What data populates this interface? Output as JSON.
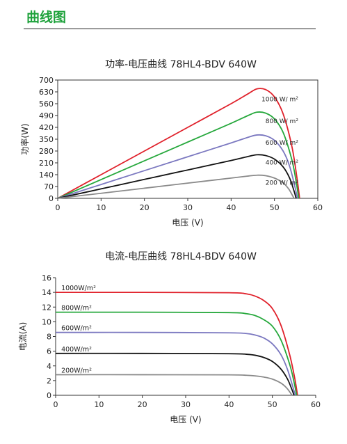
{
  "page": {
    "heading": "曲线图",
    "accent_color": "#1fa23c"
  },
  "chart_data": [
    {
      "type": "line",
      "title": "功率-电压曲线 78HL4-BDV 640W",
      "xlabel": "电压 (V)",
      "ylabel": "功率(W)",
      "xlim": [
        0,
        60
      ],
      "ylim": [
        0,
        700
      ],
      "xticks": [
        0,
        10,
        20,
        30,
        40,
        50,
        60
      ],
      "yticks": [
        0,
        70,
        140,
        210,
        280,
        350,
        420,
        490,
        560,
        630,
        700
      ],
      "grid": false,
      "legend": "inline labels",
      "series": [
        {
          "name": "1000 W/ m²",
          "color": "#e0202a",
          "points": [
            [
              0,
              0
            ],
            [
              10,
              140
            ],
            [
              20,
              280
            ],
            [
              30,
              420
            ],
            [
              40,
              560
            ],
            [
              44,
              620
            ],
            [
              46,
              648
            ],
            [
              48,
              643
            ],
            [
              50,
              600
            ],
            [
              52,
              500
            ],
            [
              54,
              310
            ],
            [
              55.2,
              120
            ],
            [
              55.8,
              0
            ]
          ]
        },
        {
          "name": "800 W/ m²",
          "color": "#26a83c",
          "points": [
            [
              0,
              0
            ],
            [
              10,
              111
            ],
            [
              20,
              222
            ],
            [
              30,
              333
            ],
            [
              40,
              444
            ],
            [
              44,
              491
            ],
            [
              46,
              510
            ],
            [
              48,
              504
            ],
            [
              50,
              470
            ],
            [
              52,
              390
            ],
            [
              54,
              230
            ],
            [
              55,
              100
            ],
            [
              55.6,
              0
            ]
          ]
        },
        {
          "name": "600 W/ m²",
          "color": "#7b78c0",
          "points": [
            [
              0,
              0
            ],
            [
              10,
              82
            ],
            [
              20,
              164
            ],
            [
              30,
              246
            ],
            [
              40,
              328
            ],
            [
              44,
              362
            ],
            [
              46,
              375
            ],
            [
              48,
              370
            ],
            [
              50,
              343
            ],
            [
              52,
              280
            ],
            [
              53.5,
              190
            ],
            [
              54.8,
              60
            ],
            [
              55.3,
              0
            ]
          ]
        },
        {
          "name": "400 W/ m²",
          "color": "#111111",
          "points": [
            [
              0,
              0
            ],
            [
              10,
              56
            ],
            [
              20,
              112
            ],
            [
              30,
              168
            ],
            [
              40,
              224
            ],
            [
              44,
              248
            ],
            [
              46,
              258
            ],
            [
              48,
              253
            ],
            [
              50,
              232
            ],
            [
              52,
              186
            ],
            [
              53.5,
              120
            ],
            [
              54.5,
              45
            ],
            [
              55,
              0
            ]
          ]
        },
        {
          "name": "200 W/ m²",
          "color": "#8a8a8a",
          "points": [
            [
              0,
              0
            ],
            [
              10,
              30
            ],
            [
              20,
              60
            ],
            [
              30,
              90
            ],
            [
              40,
              120
            ],
            [
              44,
              132
            ],
            [
              46,
              137
            ],
            [
              48,
              134
            ],
            [
              50,
              120
            ],
            [
              52,
              92
            ],
            [
              53.3,
              55
            ],
            [
              54.2,
              15
            ],
            [
              54.5,
              0
            ]
          ]
        }
      ]
    },
    {
      "type": "line",
      "title": "电流-电压曲线 78HL4-BDV 640W",
      "xlabel": "电压 (V)",
      "ylabel": "电流(A)",
      "xlim": [
        0,
        60
      ],
      "ylim": [
        0,
        16
      ],
      "xticks": [
        0,
        10,
        20,
        30,
        40,
        50,
        60
      ],
      "yticks": [
        0,
        2,
        4,
        6,
        8,
        10,
        12,
        14,
        16
      ],
      "grid": false,
      "legend": "inline labels",
      "series": [
        {
          "name": "1000W/m²",
          "color": "#e0202a",
          "points": [
            [
              0,
              14.0
            ],
            [
              20,
              14.0
            ],
            [
              40,
              13.95
            ],
            [
              44,
              13.8
            ],
            [
              46,
              13.5
            ],
            [
              48,
              12.9
            ],
            [
              50,
              11.8
            ],
            [
              52,
              9.5
            ],
            [
              54,
              5.5
            ],
            [
              55.2,
              2.2
            ],
            [
              55.8,
              0
            ]
          ]
        },
        {
          "name": "800W/m²",
          "color": "#26a83c",
          "points": [
            [
              0,
              11.3
            ],
            [
              20,
              11.3
            ],
            [
              40,
              11.25
            ],
            [
              44,
              11.1
            ],
            [
              46,
              10.85
            ],
            [
              48,
              10.3
            ],
            [
              50,
              9.4
            ],
            [
              52,
              7.5
            ],
            [
              54,
              4.2
            ],
            [
              55,
              1.8
            ],
            [
              55.6,
              0
            ]
          ]
        },
        {
          "name": "600W/m²",
          "color": "#7b78c0",
          "points": [
            [
              0,
              8.55
            ],
            [
              20,
              8.55
            ],
            [
              40,
              8.5
            ],
            [
              44,
              8.4
            ],
            [
              46,
              8.2
            ],
            [
              48,
              7.8
            ],
            [
              50,
              7.0
            ],
            [
              52,
              5.5
            ],
            [
              53.5,
              3.5
            ],
            [
              54.8,
              1.0
            ],
            [
              55.3,
              0
            ]
          ]
        },
        {
          "name": "400W/m²",
          "color": "#111111",
          "points": [
            [
              0,
              5.7
            ],
            [
              20,
              5.7
            ],
            [
              40,
              5.66
            ],
            [
              44,
              5.58
            ],
            [
              46,
              5.45
            ],
            [
              48,
              5.15
            ],
            [
              50,
              4.6
            ],
            [
              52,
              3.55
            ],
            [
              53.5,
              2.2
            ],
            [
              54.5,
              0.8
            ],
            [
              55,
              0
            ]
          ]
        },
        {
          "name": "200W/m²",
          "color": "#8a8a8a",
          "points": [
            [
              0,
              2.8
            ],
            [
              20,
              2.8
            ],
            [
              40,
              2.78
            ],
            [
              44,
              2.72
            ],
            [
              46,
              2.64
            ],
            [
              48,
              2.48
            ],
            [
              50,
              2.2
            ],
            [
              52,
              1.65
            ],
            [
              53.3,
              1.0
            ],
            [
              54.2,
              0.3
            ],
            [
              54.5,
              0
            ]
          ]
        }
      ]
    }
  ]
}
